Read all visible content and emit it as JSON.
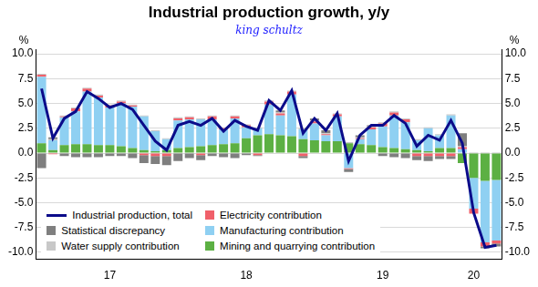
{
  "chart_data": {
    "type": "bar",
    "title": "Industrial production growth, y/y",
    "subtitle": "king schultz",
    "ylabel": "%",
    "stacked": true,
    "grid": true,
    "legend": "lower left",
    "categories": [
      null,
      null,
      null,
      null,
      null,
      null,
      "17",
      null,
      null,
      null,
      null,
      null,
      null,
      null,
      null,
      null,
      null,
      null,
      "18",
      null,
      null,
      null,
      null,
      null,
      null,
      null,
      null,
      null,
      null,
      null,
      "19",
      null,
      null,
      null,
      null,
      null,
      null,
      null,
      "20",
      null,
      null
    ],
    "ylim": [
      -10.7,
      10.4
    ],
    "yticks": [
      {
        "value": -10,
        "label": "-10.0"
      },
      {
        "value": -7.5,
        "label": "-7.5"
      },
      {
        "value": -5,
        "label": "-5.0"
      },
      {
        "value": -2.5,
        "label": "-2.5"
      },
      {
        "value": 0,
        "label": "0.0"
      },
      {
        "value": 2.5,
        "label": "2.5"
      },
      {
        "value": 5,
        "label": "5.0"
      },
      {
        "value": 7.5,
        "label": "7.5"
      },
      {
        "value": 10,
        "label": "10.0"
      }
    ],
    "y2lim": [
      -10.7,
      10.4
    ],
    "y2ticks": [
      {
        "value": -10,
        "label": "-10.0"
      },
      {
        "value": -7.5,
        "label": "-7.5"
      },
      {
        "value": -5,
        "label": "-5.0"
      },
      {
        "value": -2.5,
        "label": "-2.5"
      },
      {
        "value": 0,
        "label": "0.0"
      },
      {
        "value": 2.5,
        "label": "2.5"
      },
      {
        "value": 5,
        "label": "5.0"
      },
      {
        "value": 7.5,
        "label": "7.5"
      },
      {
        "value": 10,
        "label": "10.0"
      }
    ],
    "series": [
      {
        "name": "Mining and quarrying contribution",
        "color": "#5cb043",
        "type": "bar",
        "values": [
          1.0,
          0.3,
          0.8,
          0.9,
          0.9,
          0.8,
          0.8,
          0.7,
          0.5,
          0.3,
          0.2,
          0.3,
          0.5,
          0.6,
          0.7,
          0.8,
          0.9,
          1.0,
          1.5,
          1.8,
          1.9,
          1.8,
          1.7,
          1.4,
          1.3,
          1.2,
          1.2,
          1.0,
          0.9,
          0.8,
          0.6,
          0.5,
          0.4,
          0.3,
          0.2,
          0.5,
          0.5,
          -1.0,
          -2.5,
          -2.8,
          -2.7
        ]
      },
      {
        "name": "Manufacturing contribution",
        "color": "#8fd0f2",
        "type": "bar",
        "values": [
          6.7,
          1.0,
          2.8,
          3.3,
          5.3,
          4.8,
          3.8,
          4.3,
          4.2,
          3.4,
          2.0,
          1.1,
          2.8,
          2.8,
          2.7,
          2.6,
          1.5,
          2.5,
          1.1,
          0.7,
          3.0,
          2.0,
          4.2,
          1.0,
          1.7,
          0.6,
          2.5,
          -1.5,
          0.5,
          1.6,
          2.1,
          3.3,
          2.7,
          1.0,
          2.3,
          1.3,
          3.3,
          0.4,
          -3.1,
          -6.2,
          -6.1
        ]
      },
      {
        "name": "Electricity contribution",
        "color": "#f0606a",
        "type": "bar",
        "values": [
          0.2,
          -0.1,
          0.1,
          0.3,
          0.3,
          0.2,
          0.2,
          0.2,
          0.1,
          -0.2,
          -0.3,
          -0.3,
          0.2,
          0.2,
          -0.2,
          0.3,
          0.1,
          0.2,
          0.2,
          -0.2,
          0.3,
          0.2,
          0.3,
          -0.3,
          0.2,
          0.1,
          0.2,
          -0.1,
          0.1,
          0.2,
          0.3,
          0.3,
          0.3,
          -0.3,
          -0.3,
          -0.3,
          -0.3,
          0.2,
          -0.5,
          -0.4,
          -0.3
        ]
      },
      {
        "name": "Water supply contribution",
        "color": "#c8c8c8",
        "type": "bar",
        "values": [
          0.1,
          0.1,
          0.1,
          0.1,
          0.1,
          0.1,
          0.1,
          0.1,
          0.1,
          0.1,
          0.1,
          0.1,
          0.1,
          0.1,
          0.1,
          0.1,
          0.1,
          0.1,
          0.1,
          0.1,
          0.1,
          0.1,
          0.1,
          0.1,
          0.1,
          0.1,
          0.1,
          0.1,
          0.1,
          0.1,
          0.1,
          0.1,
          0.1,
          0.1,
          0.1,
          0.1,
          0.1,
          0.1,
          0.1,
          0.1,
          0.1
        ]
      },
      {
        "name": "Statistical discrepancy",
        "color": "#7f7f7f",
        "type": "bar",
        "values": [
          -1.5,
          0.2,
          -0.3,
          -0.4,
          -0.4,
          -0.4,
          -0.3,
          -0.3,
          -0.5,
          -0.8,
          -0.8,
          -0.9,
          -0.8,
          -0.5,
          -0.5,
          -0.3,
          -0.4,
          -0.5,
          -0.2,
          -0.1,
          0.0,
          0.2,
          0.0,
          -0.2,
          0.2,
          0.3,
          0.0,
          -0.3,
          0.2,
          0.1,
          -0.3,
          -0.4,
          -0.5,
          -0.4,
          -0.5,
          -0.3,
          -0.3,
          1.3,
          0.0,
          -0.2,
          -0.3
        ]
      },
      {
        "name": "Industrial production, total",
        "color": "#0b0b8a",
        "type": "line",
        "values": [
          6.5,
          1.5,
          3.5,
          4.2,
          6.2,
          5.5,
          4.6,
          5.0,
          4.4,
          2.8,
          1.2,
          0.3,
          2.8,
          3.2,
          2.8,
          3.5,
          2.2,
          3.3,
          2.7,
          2.3,
          5.3,
          4.3,
          6.3,
          2.0,
          3.5,
          2.3,
          4.0,
          -0.8,
          1.8,
          2.8,
          2.8,
          3.8,
          3.0,
          0.7,
          1.8,
          1.3,
          3.3,
          1.0,
          -6.0,
          -9.5,
          -9.3
        ]
      }
    ]
  }
}
